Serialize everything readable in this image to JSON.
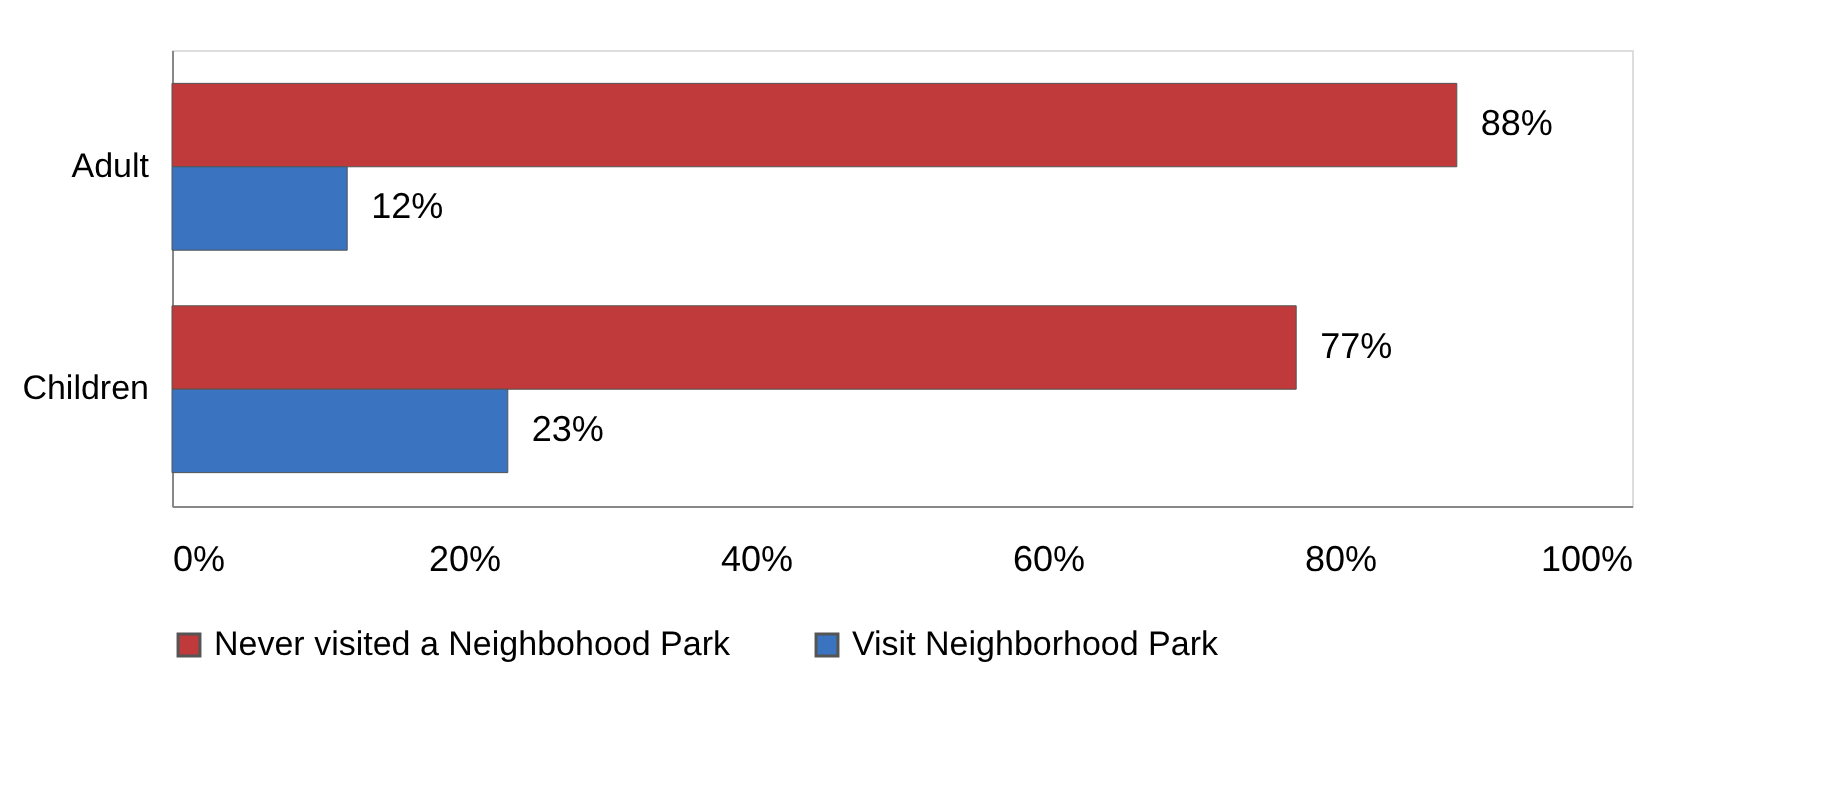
{
  "chart_data": {
    "type": "bar",
    "orientation": "horizontal",
    "categories": [
      "Adult",
      "Children"
    ],
    "series": [
      {
        "name": "Never visited a Neighbohood Park",
        "color": "#c0393b",
        "values": [
          88,
          77
        ],
        "value_labels": [
          "88%",
          "77%"
        ]
      },
      {
        "name": "Visit Neighborhood Park",
        "color": "#3a73c0",
        "values": [
          12,
          23
        ],
        "value_labels": [
          "12%",
          "23%"
        ]
      }
    ],
    "xlim": [
      0,
      100
    ],
    "xticks": [
      {
        "value": 0,
        "label": "0%"
      },
      {
        "value": 20,
        "label": "20%"
      },
      {
        "value": 40,
        "label": "40%"
      },
      {
        "value": 60,
        "label": "60%"
      },
      {
        "value": 80,
        "label": "80%"
      },
      {
        "value": 100,
        "label": "100%"
      }
    ],
    "grid": false,
    "legend": "bottom"
  }
}
